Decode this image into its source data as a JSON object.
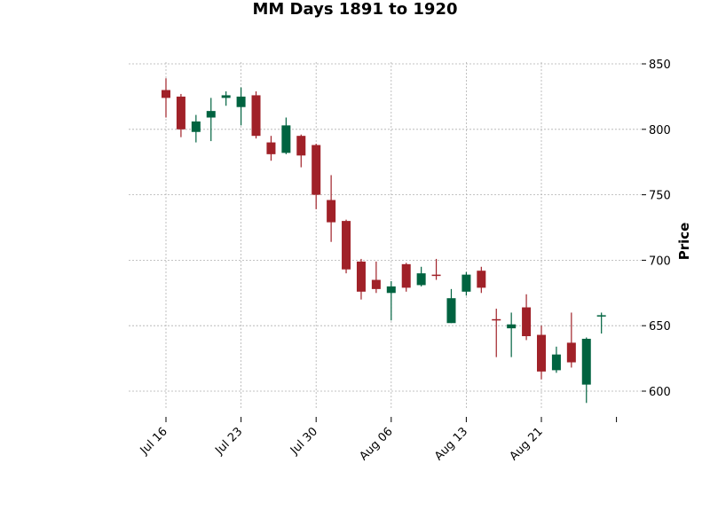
{
  "chart_data": {
    "type": "candlestick",
    "title": "MM Days 1891 to 1920",
    "xlabel": "",
    "ylabel": "Price",
    "ylim": [
      580,
      850
    ],
    "yticks": [
      600,
      650,
      700,
      750,
      800,
      850
    ],
    "y_axis_position": "right",
    "grid": true,
    "colors": {
      "up": "#006340",
      "down": "#a02128",
      "grid": "#b0b0b0"
    },
    "x_tick_labels": [
      {
        "label": "Jul 16",
        "index": 0
      },
      {
        "label": "Jul 23",
        "index": 5
      },
      {
        "label": "Jul 30",
        "index": 10
      },
      {
        "label": "Aug 06",
        "index": 15
      },
      {
        "label": "Aug 13",
        "index": 20
      },
      {
        "label": "Aug 21",
        "index": 25
      },
      {
        "label": "",
        "index": 30
      }
    ],
    "candles": [
      {
        "open": 830,
        "high": 839,
        "low": 809,
        "close": 824
      },
      {
        "open": 825,
        "high": 827,
        "low": 794,
        "close": 800
      },
      {
        "open": 798,
        "high": 811,
        "low": 790,
        "close": 806
      },
      {
        "open": 809,
        "high": 824,
        "low": 791,
        "close": 814
      },
      {
        "open": 824,
        "high": 829,
        "low": 818,
        "close": 826
      },
      {
        "open": 817,
        "high": 832,
        "low": 803,
        "close": 825
      },
      {
        "open": 826,
        "high": 829,
        "low": 793,
        "close": 795
      },
      {
        "open": 790,
        "high": 795,
        "low": 776,
        "close": 781
      },
      {
        "open": 782,
        "high": 809,
        "low": 781,
        "close": 803
      },
      {
        "open": 795,
        "high": 796,
        "low": 771,
        "close": 780
      },
      {
        "open": 788,
        "high": 789,
        "low": 739,
        "close": 750
      },
      {
        "open": 746,
        "high": 765,
        "low": 714,
        "close": 729
      },
      {
        "open": 730,
        "high": 731,
        "low": 690,
        "close": 693
      },
      {
        "open": 699,
        "high": 701,
        "low": 670,
        "close": 676
      },
      {
        "open": 685,
        "high": 699,
        "low": 675,
        "close": 678
      },
      {
        "open": 675,
        "high": 684,
        "low": 654,
        "close": 680
      },
      {
        "open": 697,
        "high": 698,
        "low": 676,
        "close": 679
      },
      {
        "open": 681,
        "high": 695,
        "low": 680,
        "close": 690
      },
      {
        "open": 689,
        "high": 701,
        "low": 685,
        "close": 688
      },
      {
        "open": 652,
        "high": 678,
        "low": 652,
        "close": 671
      },
      {
        "open": 676,
        "high": 691,
        "low": 673,
        "close": 689
      },
      {
        "open": 692,
        "high": 695,
        "low": 675,
        "close": 679
      },
      {
        "open": 655,
        "high": 663,
        "low": 626,
        "close": 654
      },
      {
        "open": 648,
        "high": 660,
        "low": 626,
        "close": 651
      },
      {
        "open": 664,
        "high": 674,
        "low": 639,
        "close": 642
      },
      {
        "open": 643,
        "high": 650,
        "low": 609,
        "close": 615
      },
      {
        "open": 616,
        "high": 634,
        "low": 614,
        "close": 628
      },
      {
        "open": 637,
        "high": 660,
        "low": 618,
        "close": 622
      },
      {
        "open": 605,
        "high": 641,
        "low": 591,
        "close": 640
      },
      {
        "open": 658,
        "high": 660,
        "low": 644,
        "close": 658
      }
    ]
  }
}
